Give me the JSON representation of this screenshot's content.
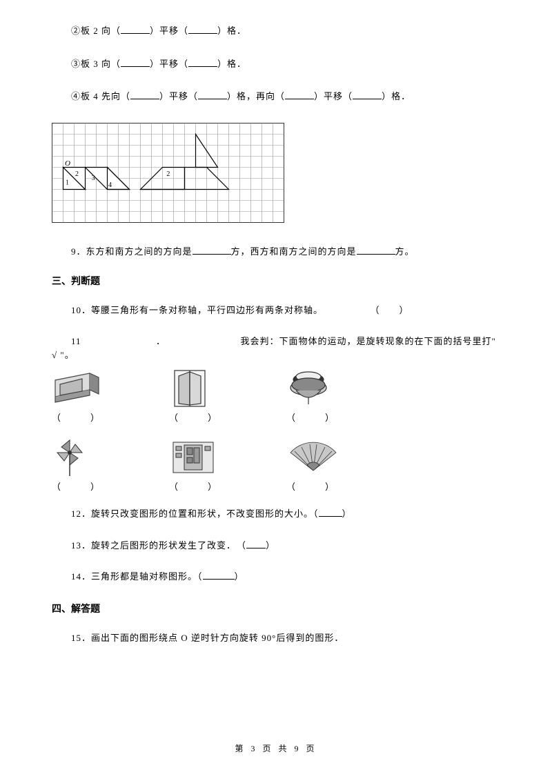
{
  "q_items": {
    "i2": {
      "prefix": "②板 2 向（",
      "mid": "）平移（",
      "suffix": "）格．"
    },
    "i3": {
      "prefix": "③板 3 向（",
      "mid": "）平移（",
      "suffix": "）格．"
    },
    "i4": {
      "p1": "④板 4 先向（",
      "p2": "）平移（",
      "p3": "）格，再向（",
      "p4": "）平移（",
      "p5": "）格．"
    }
  },
  "grid": {
    "cols": 21,
    "rows": 9,
    "cell": 16,
    "labelO": "O",
    "label1": "1",
    "label2a": "2",
    "label3": "3",
    "label4": "4",
    "label2b": "2",
    "stroke": "#9a9a9a",
    "shape_stroke": "#000000",
    "fill_light": "#f2f2f2"
  },
  "q9": {
    "p1": "9．东方和南方之间的方向是",
    "p2": "方，西方和南方之间的方向是",
    "p3": "方。"
  },
  "sec3": "三、判断题",
  "q10": {
    "text": "10．等腰三角形有一条对称轴，平行四边形有两条对称轴。",
    "paren": "（　　）"
  },
  "q11": {
    "num": "11",
    "dot": "．",
    "text": "我会判：下面物体的运动，是旋转现象的在下面的括号里打\" √ \"。"
  },
  "row_paren": "（　　　）",
  "q12": {
    "text": "12．旋转只改变图形的位置和形状，不改变图形的大小。（",
    "suffix": "）"
  },
  "q13": {
    "text": "13．旋转之后图形的形状发生了改变．　（",
    "suffix": "）"
  },
  "q14": {
    "text": "14．三角形都是轴对称图形。（",
    "suffix": "）"
  },
  "sec4": "四、解答题",
  "q15": "15．画出下面的图形绕点 O 逆时针方向旋转 90°后得到的图形．",
  "footer": {
    "p1": "第 3 页",
    "p2": "共 9 页"
  },
  "icons": {
    "drawer": "#5a5a5a",
    "door": "#6a6a6a",
    "top": "#4a4a4a",
    "pinwheel": "#6a6a6a",
    "shelf": "#6a6a6a",
    "fan": "#7a7a7a"
  }
}
